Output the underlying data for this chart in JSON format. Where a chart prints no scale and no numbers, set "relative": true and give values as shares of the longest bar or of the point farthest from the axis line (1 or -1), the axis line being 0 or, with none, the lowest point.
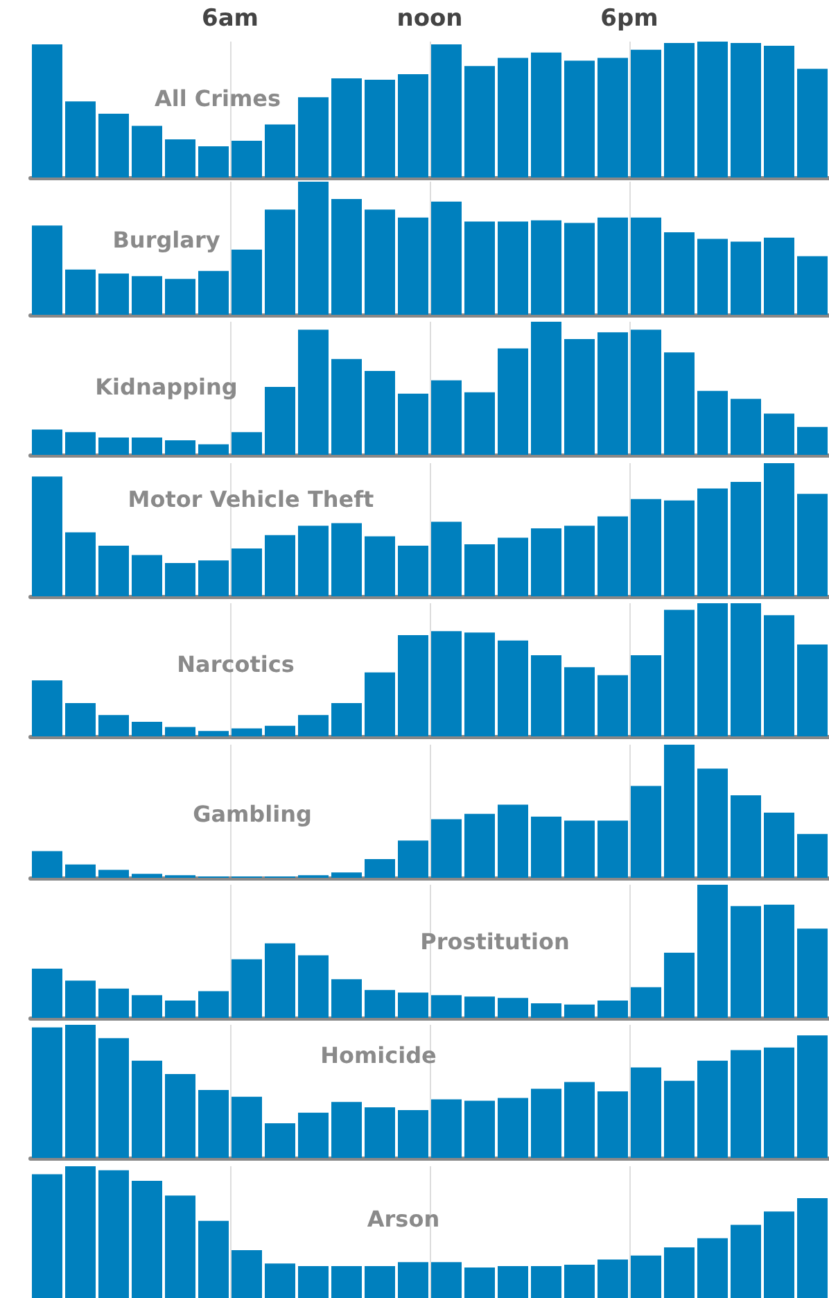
{
  "chart_data": [
    {
      "type": "bar",
      "title": "All Crimes",
      "relative": true,
      "color": "#0080be",
      "categories": [
        null,
        null,
        null,
        null,
        null,
        null,
        "6am",
        null,
        null,
        null,
        null,
        null,
        "noon",
        null,
        null,
        null,
        null,
        null,
        "6pm",
        null,
        null,
        null,
        null,
        null
      ],
      "values": [
        0.98,
        0.56,
        0.47,
        0.38,
        0.28,
        0.23,
        0.27,
        0.39,
        0.59,
        0.73,
        0.72,
        0.76,
        0.98,
        0.82,
        0.88,
        0.92,
        0.86,
        0.88,
        0.94,
        0.99,
        1,
        0.99,
        0.97,
        0.8
      ],
      "grid": "x",
      "tick_labels": "x"
    },
    {
      "type": "bar",
      "title": "Burglary",
      "relative": true,
      "color": "#0080be",
      "categories": [
        null,
        null,
        null,
        null,
        null,
        null,
        null,
        null,
        null,
        null,
        null,
        null,
        null,
        null,
        null,
        null,
        null,
        null,
        null,
        null,
        null,
        null,
        null,
        null
      ],
      "values": [
        0.67,
        0.34,
        0.31,
        0.29,
        0.27,
        0.33,
        0.49,
        0.79,
        1,
        0.87,
        0.79,
        0.73,
        0.85,
        0.7,
        0.7,
        0.71,
        0.69,
        0.73,
        0.73,
        0.62,
        0.57,
        0.55,
        0.58,
        0.44
      ],
      "grid": "x",
      "tick_labels": false
    },
    {
      "type": "bar",
      "title": "Kidnapping",
      "relative": true,
      "color": "#0080be",
      "categories": [
        null,
        null,
        null,
        null,
        null,
        null,
        null,
        null,
        null,
        null,
        null,
        null,
        null,
        null,
        null,
        null,
        null,
        null,
        null,
        null,
        null,
        null,
        null,
        null
      ],
      "values": [
        0.19,
        0.17,
        0.13,
        0.13,
        0.11,
        0.08,
        0.17,
        0.51,
        0.94,
        0.72,
        0.63,
        0.46,
        0.56,
        0.47,
        0.8,
        1,
        0.87,
        0.92,
        0.94,
        0.77,
        0.48,
        0.42,
        0.31,
        0.21
      ],
      "grid": "x",
      "tick_labels": false
    },
    {
      "type": "bar",
      "title": "Motor Vehicle Theft",
      "relative": true,
      "color": "#0080be",
      "categories": [
        null,
        null,
        null,
        null,
        null,
        null,
        null,
        null,
        null,
        null,
        null,
        null,
        null,
        null,
        null,
        null,
        null,
        null,
        null,
        null,
        null,
        null,
        null,
        null
      ],
      "values": [
        0.9,
        0.48,
        0.38,
        0.31,
        0.25,
        0.27,
        0.36,
        0.46,
        0.53,
        0.55,
        0.45,
        0.38,
        0.56,
        0.39,
        0.44,
        0.51,
        0.53,
        0.6,
        0.73,
        0.72,
        0.81,
        0.86,
        1,
        0.77
      ],
      "grid": "x",
      "tick_labels": false
    },
    {
      "type": "bar",
      "title": "Narcotics",
      "relative": true,
      "color": "#0080be",
      "categories": [
        null,
        null,
        null,
        null,
        null,
        null,
        null,
        null,
        null,
        null,
        null,
        null,
        null,
        null,
        null,
        null,
        null,
        null,
        null,
        null,
        null,
        null,
        null,
        null
      ],
      "values": [
        0.42,
        0.25,
        0.16,
        0.11,
        0.07,
        0.04,
        0.06,
        0.08,
        0.16,
        0.25,
        0.48,
        0.76,
        0.79,
        0.78,
        0.72,
        0.61,
        0.52,
        0.46,
        0.61,
        0.95,
        1,
        1,
        0.91,
        0.69
      ],
      "grid": "x",
      "tick_labels": false
    },
    {
      "type": "bar",
      "title": "Gambling",
      "relative": true,
      "color": "#0080be",
      "categories": [
        null,
        null,
        null,
        null,
        null,
        null,
        null,
        null,
        null,
        null,
        null,
        null,
        null,
        null,
        null,
        null,
        null,
        null,
        null,
        null,
        null,
        null,
        null,
        null
      ],
      "values": [
        0.2,
        0.1,
        0.06,
        0.03,
        0.02,
        0.01,
        0.01,
        0.01,
        0.02,
        0.04,
        0.14,
        0.28,
        0.44,
        0.48,
        0.55,
        0.46,
        0.43,
        0.43,
        0.69,
        1,
        0.82,
        0.62,
        0.49,
        0.33
      ],
      "grid": "x",
      "tick_labels": false
    },
    {
      "type": "bar",
      "title": "Prostitution",
      "relative": true,
      "color": "#0080be",
      "categories": [
        null,
        null,
        null,
        null,
        null,
        null,
        null,
        null,
        null,
        null,
        null,
        null,
        null,
        null,
        null,
        null,
        null,
        null,
        null,
        null,
        null,
        null,
        null,
        null
      ],
      "values": [
        0.37,
        0.28,
        0.22,
        0.17,
        0.13,
        0.2,
        0.44,
        0.56,
        0.47,
        0.29,
        0.21,
        0.19,
        0.17,
        0.16,
        0.15,
        0.11,
        0.1,
        0.13,
        0.23,
        0.49,
        1,
        0.84,
        0.85,
        0.67
      ],
      "grid": "x",
      "tick_labels": false
    },
    {
      "type": "bar",
      "title": "Homicide",
      "relative": true,
      "color": "#0080be",
      "categories": [
        null,
        null,
        null,
        null,
        null,
        null,
        null,
        null,
        null,
        null,
        null,
        null,
        null,
        null,
        null,
        null,
        null,
        null,
        null,
        null,
        null,
        null,
        null,
        null
      ],
      "values": [
        0.98,
        1,
        0.9,
        0.73,
        0.63,
        0.51,
        0.46,
        0.26,
        0.34,
        0.42,
        0.38,
        0.36,
        0.44,
        0.43,
        0.45,
        0.52,
        0.57,
        0.5,
        0.68,
        0.58,
        0.73,
        0.81,
        0.83,
        0.92
      ],
      "grid": "x",
      "tick_labels": false
    },
    {
      "type": "bar",
      "title": "Arson",
      "relative": true,
      "color": "#0080be",
      "categories": [
        null,
        null,
        null,
        null,
        null,
        null,
        null,
        null,
        null,
        null,
        null,
        null,
        null,
        null,
        null,
        null,
        null,
        null,
        null,
        null,
        null,
        null,
        null,
        null
      ],
      "values": [
        0.94,
        1,
        0.97,
        0.89,
        0.78,
        0.59,
        0.37,
        0.27,
        0.25,
        0.25,
        0.25,
        0.28,
        0.28,
        0.24,
        0.25,
        0.25,
        0.26,
        0.3,
        0.33,
        0.39,
        0.46,
        0.56,
        0.66,
        0.76
      ],
      "grid": "x",
      "tick_labels": false
    }
  ]
}
